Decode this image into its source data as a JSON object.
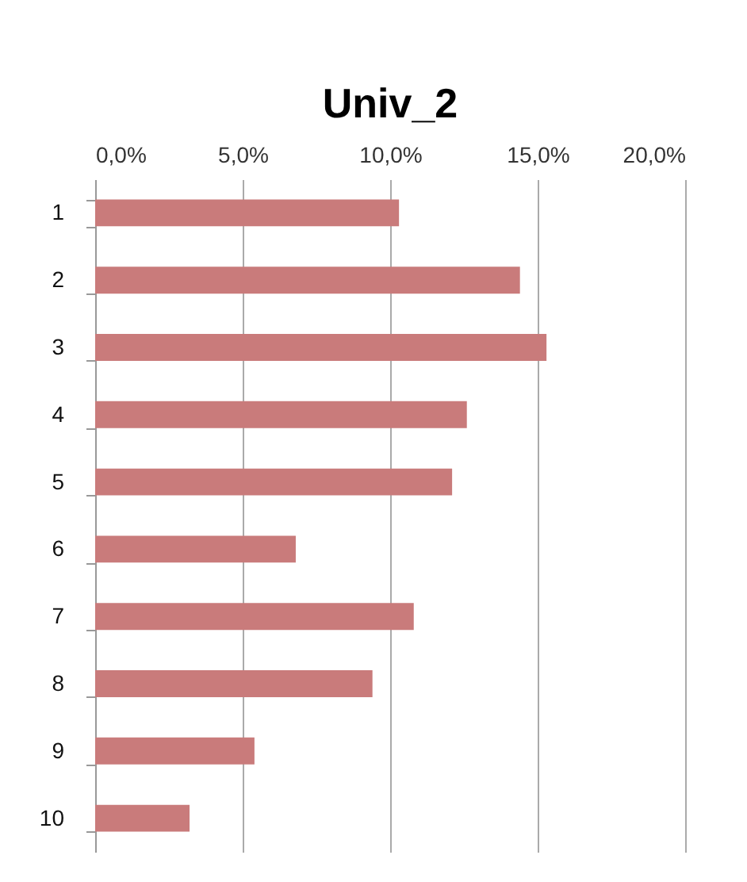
{
  "chart_data": {
    "type": "bar",
    "title": "Univ_2",
    "orientation": "horizontal",
    "categories": [
      "1",
      "2",
      "3",
      "4",
      "5",
      "6",
      "7",
      "8",
      "9",
      "10"
    ],
    "values": [
      10.3,
      14.4,
      15.3,
      12.6,
      12.1,
      6.8,
      10.8,
      9.4,
      5.4,
      3.2
    ],
    "color": "#c97b7b",
    "xlim": [
      0,
      20
    ],
    "xticks": [
      {
        "value": 0,
        "label": "0,0%"
      },
      {
        "value": 5,
        "label": "5,0%"
      },
      {
        "value": 10,
        "label": "10,0%"
      },
      {
        "value": 15,
        "label": "15,0%"
      },
      {
        "value": 20,
        "label": "20,0%"
      }
    ],
    "grid": "x"
  }
}
